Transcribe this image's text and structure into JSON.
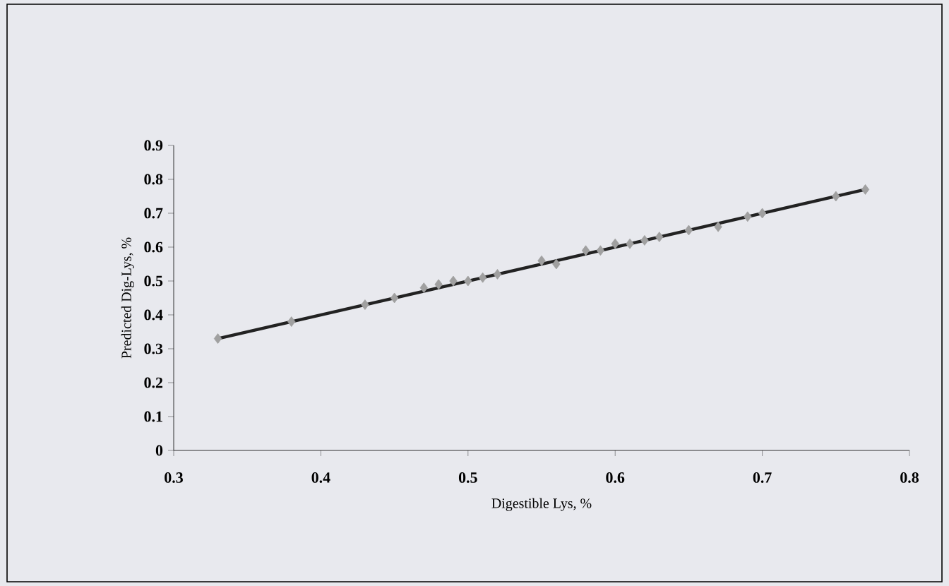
{
  "chart_data": {
    "type": "scatter",
    "xlabel": "Digestible Lys, %",
    "ylabel": "Predicted Dig-Lys, %",
    "xlim": [
      0.3,
      0.8
    ],
    "xticks": [
      0.3,
      0.4,
      0.5,
      0.6,
      0.7,
      0.8
    ],
    "ylim": [
      0,
      0.9
    ],
    "yticks": [
      0,
      0.1,
      0.2,
      0.3,
      0.4,
      0.5,
      0.6,
      0.7,
      0.8,
      0.9
    ],
    "grid": false,
    "marker": "diamond",
    "series": [
      {
        "color": "#a0a0a0",
        "x": [
          0.33,
          0.38,
          0.43,
          0.45,
          0.47,
          0.48,
          0.49,
          0.5,
          0.51,
          0.52,
          0.55,
          0.56,
          0.58,
          0.59,
          0.6,
          0.61,
          0.62,
          0.63,
          0.65,
          0.67,
          0.69,
          0.7,
          0.75,
          0.77
        ],
        "values": [
          0.33,
          0.38,
          0.43,
          0.45,
          0.48,
          0.49,
          0.5,
          0.5,
          0.51,
          0.52,
          0.56,
          0.55,
          0.59,
          0.59,
          0.61,
          0.61,
          0.62,
          0.63,
          0.65,
          0.66,
          0.69,
          0.7,
          0.75,
          0.77
        ]
      },
      {
        "type": "line",
        "color": "#222222",
        "marker": "none",
        "line_style": "solid",
        "x": [
          0.33,
          0.77
        ],
        "values": [
          0.33,
          0.77
        ]
      }
    ]
  }
}
